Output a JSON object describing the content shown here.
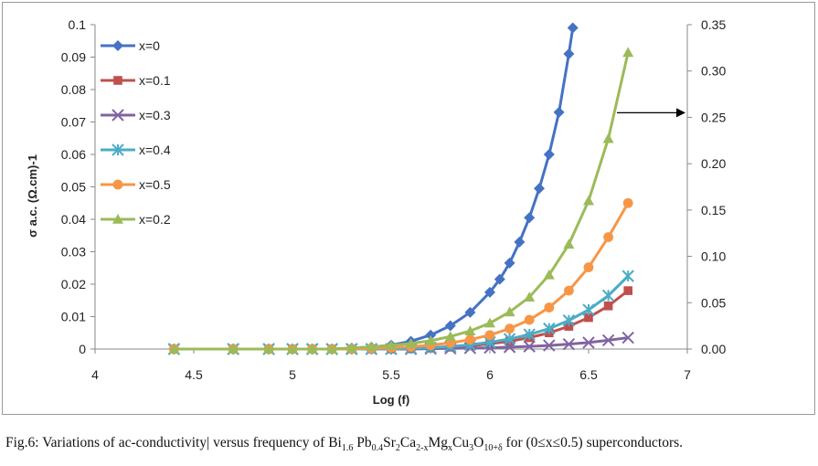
{
  "chart_data": {
    "type": "scatter",
    "title": "",
    "xlabel": "Log (f)",
    "ylabel": "σ a.c. (Ω.cm)-1",
    "xlim": [
      4,
      7
    ],
    "ylim": [
      0,
      0.1
    ],
    "y2lim": [
      0,
      0.35
    ],
    "x_ticks": [
      "4",
      "4.5",
      "5",
      "5.5",
      "6",
      "6.5",
      "7"
    ],
    "y_ticks": [
      "0",
      "0.01",
      "0.02",
      "0.03",
      "0.04",
      "0.05",
      "0.06",
      "0.07",
      "0.08",
      "0.09",
      "0.1"
    ],
    "y2_ticks": [
      "0.00",
      "0.05",
      "0.10",
      "0.15",
      "0.20",
      "0.25",
      "0.30",
      "0.35"
    ],
    "legend_position": "top-left",
    "annotation": "arrow pointing to right axis for x=0.2",
    "series": [
      {
        "name": "x=0",
        "color": "#4472C4",
        "marker": "diamond",
        "axis": "left",
        "x": [
          4.4,
          4.7,
          4.88,
          5.0,
          5.1,
          5.2,
          5.3,
          5.4,
          5.5,
          5.6,
          5.7,
          5.8,
          5.9,
          6.0,
          6.05,
          6.1,
          6.15,
          6.2,
          6.25,
          6.3,
          6.35,
          6.4,
          6.42
        ],
        "values": [
          0,
          0,
          0,
          0,
          0,
          0,
          0.0003,
          0.0006,
          0.0012,
          0.0024,
          0.0043,
          0.0072,
          0.0113,
          0.0175,
          0.0215,
          0.0265,
          0.033,
          0.0405,
          0.0495,
          0.06,
          0.073,
          0.091,
          0.099
        ]
      },
      {
        "name": "x=0.1",
        "color": "#C0504D",
        "marker": "square",
        "axis": "left",
        "x": [
          4.4,
          4.7,
          4.88,
          5.0,
          5.1,
          5.2,
          5.3,
          5.4,
          5.5,
          5.6,
          5.7,
          5.8,
          5.9,
          6.0,
          6.1,
          6.2,
          6.3,
          6.4,
          6.5,
          6.6,
          6.7
        ],
        "values": [
          0,
          0,
          0,
          0,
          0,
          0,
          0,
          0,
          0,
          0.0001,
          0.0003,
          0.0006,
          0.001,
          0.0016,
          0.0024,
          0.0035,
          0.005,
          0.007,
          0.0097,
          0.0133,
          0.018
        ]
      },
      {
        "name": "x=0.3",
        "color": "#8064A2",
        "marker": "x",
        "axis": "left",
        "x": [
          4.4,
          4.7,
          4.88,
          5.0,
          5.1,
          5.2,
          5.3,
          5.4,
          5.5,
          5.6,
          5.7,
          5.8,
          5.9,
          6.0,
          6.1,
          6.2,
          6.3,
          6.4,
          6.5,
          6.6,
          6.7
        ],
        "values": [
          0,
          0,
          0,
          0,
          0,
          0,
          0,
          0,
          0,
          0,
          0.0001,
          0.0002,
          0.0003,
          0.0004,
          0.0006,
          0.0008,
          0.0011,
          0.0015,
          0.002,
          0.0027,
          0.0035
        ]
      },
      {
        "name": "x=0.4",
        "color": "#4BACC6",
        "marker": "star",
        "axis": "left",
        "x": [
          4.4,
          4.7,
          4.88,
          5.0,
          5.1,
          5.2,
          5.3,
          5.4,
          5.5,
          5.6,
          5.7,
          5.8,
          5.9,
          6.0,
          6.1,
          6.2,
          6.3,
          6.4,
          6.5,
          6.6,
          6.7
        ],
        "values": [
          0,
          0,
          0,
          0,
          0,
          0,
          0,
          0,
          0,
          0.0002,
          0.0004,
          0.0008,
          0.0013,
          0.0021,
          0.0031,
          0.0045,
          0.0063,
          0.0088,
          0.0121,
          0.0165,
          0.0225
        ]
      },
      {
        "name": "x=0.5",
        "color": "#F79646",
        "marker": "circle",
        "axis": "left",
        "x": [
          4.4,
          4.7,
          4.88,
          5.0,
          5.1,
          5.2,
          5.3,
          5.4,
          5.5,
          5.6,
          5.7,
          5.8,
          5.9,
          6.0,
          6.1,
          6.2,
          6.3,
          6.4,
          6.5,
          6.6,
          6.7
        ],
        "values": [
          0,
          0,
          0,
          0,
          0,
          0,
          0,
          0.0002,
          0.0004,
          0.0007,
          0.0012,
          0.0019,
          0.0029,
          0.0043,
          0.0063,
          0.009,
          0.0128,
          0.018,
          0.0252,
          0.0345,
          0.045
        ]
      },
      {
        "name": "x=0.2",
        "color": "#9BBB59",
        "marker": "triangle",
        "axis": "right",
        "x": [
          4.4,
          4.7,
          4.88,
          5.0,
          5.1,
          5.2,
          5.3,
          5.4,
          5.5,
          5.6,
          5.7,
          5.8,
          5.9,
          6.0,
          6.1,
          6.2,
          6.3,
          6.4,
          6.5,
          6.6,
          6.7
        ],
        "values": [
          0,
          0,
          0,
          0,
          0,
          0,
          0.001,
          0.0025,
          0.004,
          0.006,
          0.009,
          0.0135,
          0.0195,
          0.028,
          0.04,
          0.056,
          0.08,
          0.113,
          0.16,
          0.227,
          0.32
        ]
      }
    ]
  },
  "caption": {
    "p1": "Fig.6: Variations of ac-conductivity| versus frequency of Bi",
    "s1": "1.6",
    "p2": " Pb",
    "s2": "0.4",
    "p3": "Sr",
    "s3": "2",
    "p4": "Ca",
    "s4": "2-x",
    "p5": "Mg",
    "s5": "x",
    "p6": "Cu",
    "s6": "3",
    "p7": "O",
    "s7": "10+δ",
    "p8": " for (0≤x≤0.5) superconductors."
  }
}
